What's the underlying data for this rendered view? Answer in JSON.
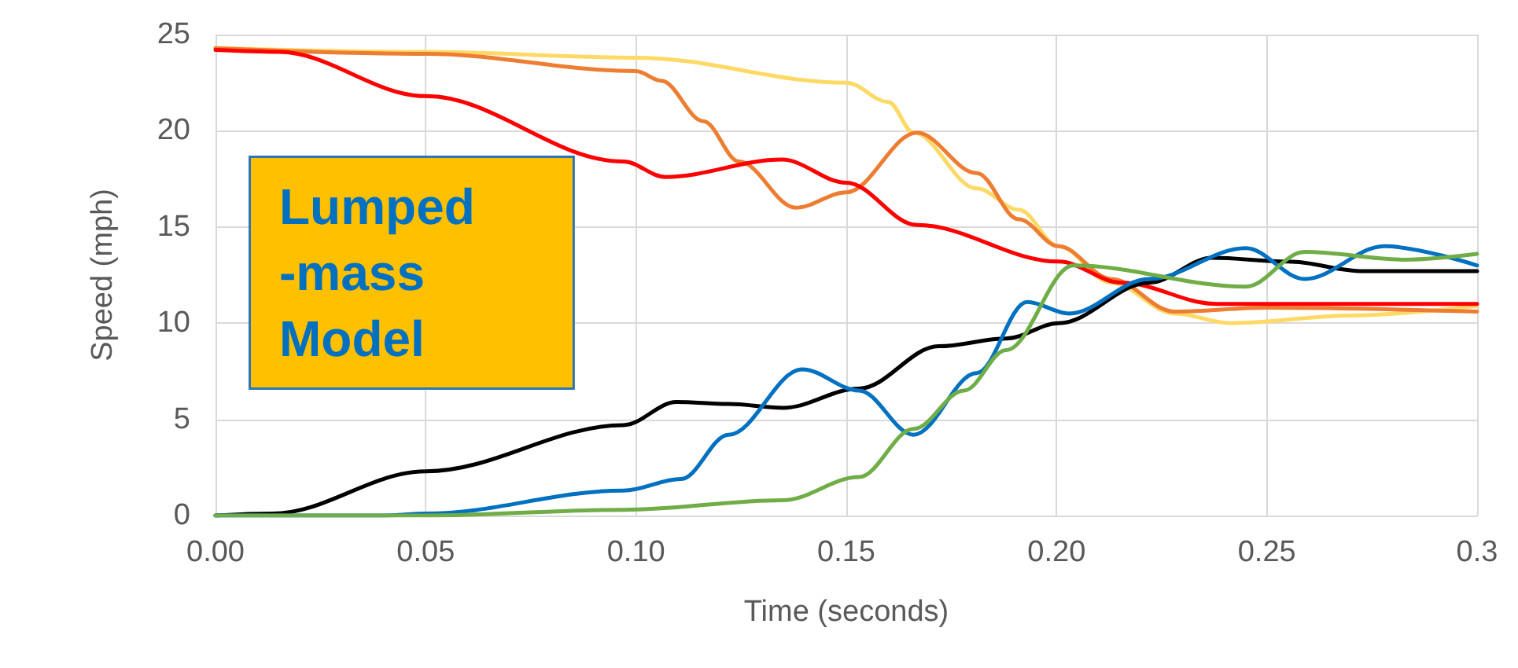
{
  "chart_data": {
    "type": "line",
    "xlabel": "Time (seconds)",
    "ylabel": "Speed (mph)",
    "annotations": [
      "Lumped -mass Model"
    ],
    "xlim": [
      0,
      0.3
    ],
    "xticks": [
      {
        "value": 0,
        "label": "0.00"
      },
      {
        "value": 0.05,
        "label": "0.05"
      },
      {
        "value": 0.1,
        "label": "0.10"
      },
      {
        "value": 0.15,
        "label": "0.15"
      },
      {
        "value": 0.2,
        "label": "0.20"
      },
      {
        "value": 0.25,
        "label": "0.25"
      },
      {
        "value": 0.3,
        "label": "0.3"
      }
    ],
    "ylim": [
      0,
      25
    ],
    "yticks": [
      0,
      5,
      10,
      15,
      20,
      25
    ],
    "grid": true,
    "marker": "none",
    "line_style": "solid",
    "series": [
      {
        "color": "#ffd966",
        "x": [
          0,
          0.05,
          0.1,
          0.15,
          0.16,
          0.166,
          0.181,
          0.191,
          0.2005,
          0.213,
          0.228,
          0.2415,
          0.27,
          0.3
        ],
        "values": [
          24.3,
          24.1,
          23.8,
          22.5,
          21.5,
          19.9,
          17.0,
          15.9,
          14.0,
          12.1,
          10.5,
          10.0,
          10.4,
          10.9
        ]
      },
      {
        "color": "#ed7d31",
        "x": [
          0,
          0.05,
          0.1,
          0.106,
          0.116,
          0.1245,
          0.138,
          0.15,
          0.1668,
          0.181,
          0.191,
          0.2005,
          0.213,
          0.228,
          0.25,
          0.3
        ],
        "values": [
          24.3,
          24.0,
          23.1,
          22.6,
          20.5,
          18.4,
          16.0,
          16.8,
          19.9,
          17.8,
          15.4,
          14.0,
          12.3,
          10.6,
          10.8,
          10.6
        ]
      },
      {
        "color": "#ff0000",
        "x": [
          0,
          0.015,
          0.05,
          0.097,
          0.107,
          0.1347,
          0.15,
          0.1668,
          0.2005,
          0.2155,
          0.238,
          0.3
        ],
        "values": [
          24.2,
          24.1,
          21.8,
          18.4,
          17.6,
          18.5,
          17.3,
          15.1,
          13.2,
          12.1,
          11.0,
          11.0
        ]
      },
      {
        "color": "#000000",
        "x": [
          0,
          0.0135,
          0.05,
          0.097,
          0.1096,
          0.122,
          0.135,
          0.153,
          0.172,
          0.188,
          0.2005,
          0.222,
          0.237,
          0.255,
          0.273,
          0.3
        ],
        "values": [
          0,
          0.1,
          2.3,
          4.7,
          5.9,
          5.8,
          5.6,
          6.6,
          8.8,
          9.2,
          10.0,
          12.1,
          13.4,
          13.2,
          12.7,
          12.7
        ]
      },
      {
        "color": "#0070c0",
        "x": [
          0,
          0.04,
          0.05,
          0.097,
          0.1107,
          0.122,
          0.1395,
          0.153,
          0.166,
          0.181,
          0.193,
          0.203,
          0.222,
          0.245,
          0.259,
          0.278,
          0.3
        ],
        "values": [
          0,
          0,
          0.1,
          1.3,
          1.9,
          4.2,
          7.6,
          6.5,
          4.2,
          7.4,
          11.1,
          10.5,
          12.3,
          13.9,
          12.3,
          14.0,
          13.0
        ]
      },
      {
        "color": "#70ad47",
        "x": [
          0,
          0.05,
          0.097,
          0.135,
          0.153,
          0.166,
          0.178,
          0.188,
          0.204,
          0.245,
          0.259,
          0.283,
          0.3
        ],
        "values": [
          0,
          0,
          0.3,
          0.8,
          2.0,
          4.5,
          6.5,
          8.6,
          13.0,
          11.9,
          13.7,
          13.3,
          13.6
        ]
      }
    ]
  }
}
